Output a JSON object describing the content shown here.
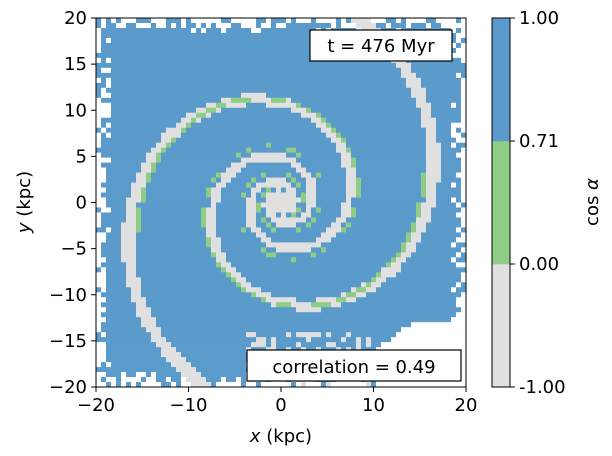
{
  "chart_data": {
    "type": "heatmap",
    "title": "",
    "xlabel": "x (kpc)",
    "ylabel": "y (kpc)",
    "xlim": [
      -20,
      20
    ],
    "ylim": [
      -20,
      20
    ],
    "xticks": [
      -20,
      -10,
      0,
      10,
      20
    ],
    "yticks": [
      -20,
      -15,
      -10,
      -5,
      0,
      5,
      10,
      15,
      20
    ],
    "xtick_labels": [
      "−20",
      "−10",
      "0",
      "10",
      "20"
    ],
    "ytick_labels": [
      "−20",
      "−15",
      "−10",
      "−5",
      "0",
      "5",
      "10",
      "15",
      "20"
    ],
    "annotation_time": "t = 476 Myr",
    "annotation_correlation": "correlation = 0.49",
    "colorbar": {
      "label": "cos α",
      "ticks": [
        -1.0,
        0.0,
        0.71,
        1.0
      ],
      "tick_labels": [
        "-1.00",
        "0.00",
        "0.71",
        "1.00"
      ],
      "bins": [
        {
          "from": -1.0,
          "to": 0.0,
          "color": "#e0e0e0"
        },
        {
          "from": 0.0,
          "to": 0.71,
          "color": "#8fcc86"
        },
        {
          "from": 0.71,
          "to": 1.0,
          "color": "#5b9bcc"
        }
      ]
    },
    "spiral_arms": [
      {
        "category": "low",
        "radius_start": 1.5,
        "radius_end": 22,
        "phase_deg": 0,
        "turns": 1.7,
        "width": 2.6
      },
      {
        "category": "low",
        "radius_start": 1.5,
        "radius_end": 22,
        "phase_deg": 180,
        "turns": 1.7,
        "width": 2.6
      },
      {
        "category": "mid",
        "radius_start": 3,
        "radius_end": 15,
        "phase_deg": 70,
        "turns": 1.3,
        "width": 0.9
      },
      {
        "category": "mid",
        "radius_start": 3,
        "radius_end": 15,
        "phase_deg": 250,
        "turns": 1.3,
        "width": 0.9
      }
    ],
    "colors": {
      "high": "#5b9bcc",
      "mid": "#8fcc86",
      "low": "#e0e0e0",
      "background": "#ffffff"
    }
  }
}
